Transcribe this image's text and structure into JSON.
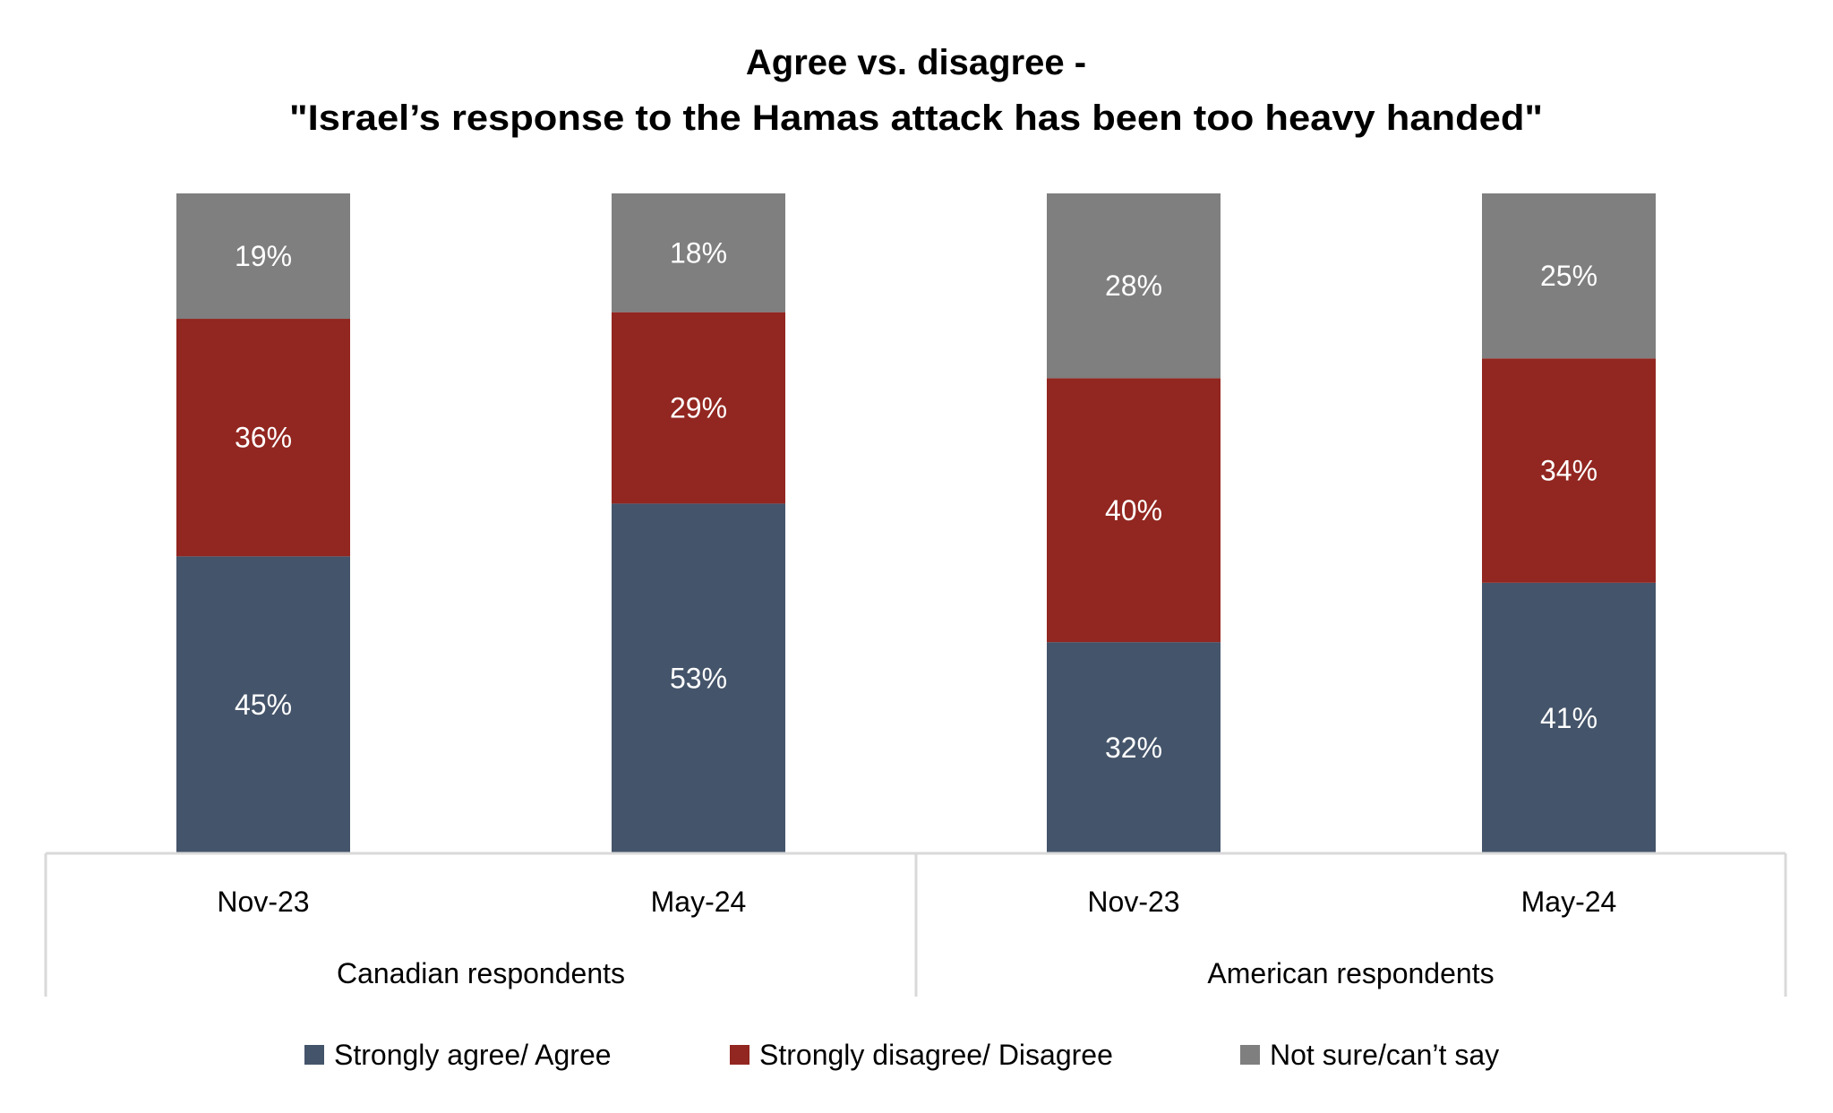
{
  "chart_data": {
    "type": "bar",
    "stacked": true,
    "title": [
      "Agree vs. disagree -",
      "\"Israel’s response to the Hamas attack has been too heavy handed\""
    ],
    "xlabel": "",
    "ylabel": "",
    "ylim": [
      0,
      100
    ],
    "grid": false,
    "value_suffix": "%",
    "legend_position": "bottom",
    "groups": [
      {
        "label": "Canadian respondents",
        "categories": [
          "Nov-23",
          "May-24"
        ]
      },
      {
        "label": "American respondents",
        "categories": [
          "Nov-23",
          "May-24"
        ]
      }
    ],
    "categories": [
      "Nov-23",
      "May-24",
      "Nov-23",
      "May-24"
    ],
    "series": [
      {
        "name": "Strongly agree/ Agree",
        "color": "#44546a",
        "values": [
          45,
          53,
          32,
          41
        ]
      },
      {
        "name": "Strongly disagree/ Disagree",
        "color": "#922620",
        "values": [
          36,
          29,
          40,
          34
        ]
      },
      {
        "name": "Not sure/can’t say",
        "color": "#7f7f7f",
        "values": [
          19,
          18,
          28,
          25
        ]
      }
    ]
  }
}
